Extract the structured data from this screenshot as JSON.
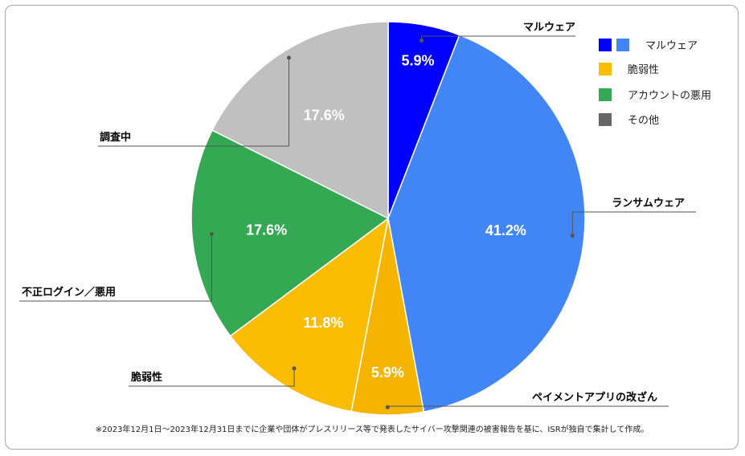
{
  "chart_data": {
    "type": "pie",
    "slices": [
      {
        "label": "マルウェア",
        "value": 5.9,
        "display": "5.9%",
        "color": "#0000ff"
      },
      {
        "label": "ランサムウェア",
        "value": 41.2,
        "display": "41.2%",
        "color": "#4285f4"
      },
      {
        "label": "ペイメントアプリの改ざん",
        "value": 5.9,
        "display": "5.9%",
        "color": "#f4b400"
      },
      {
        "label": "脆弱性",
        "value": 11.8,
        "display": "11.8%",
        "color": "#fbbc04"
      },
      {
        "label": "不正ログイン／悪用",
        "value": 17.6,
        "display": "17.6%",
        "color": "#34a853"
      },
      {
        "label": "調査中",
        "value": 17.6,
        "display": "17.6%",
        "color": "#c0c0c0"
      }
    ],
    "legend_position": "top-right",
    "legend": [
      {
        "label": "マルウェア",
        "colors": [
          "#0000ff",
          "#4285f4"
        ]
      },
      {
        "label": "脆弱性",
        "colors": [
          "#fbbc04"
        ]
      },
      {
        "label": "アカウントの悪用",
        "colors": [
          "#34a853"
        ]
      },
      {
        "label": "その他",
        "colors": [
          "#666666"
        ]
      }
    ],
    "footnote": "※2023年12月1日～2023年12月31日までに企業や団体がプレスリリース等で発表したサイバー攻撃関連の被害報告を基に、ISRが独自で集計して作成。"
  }
}
